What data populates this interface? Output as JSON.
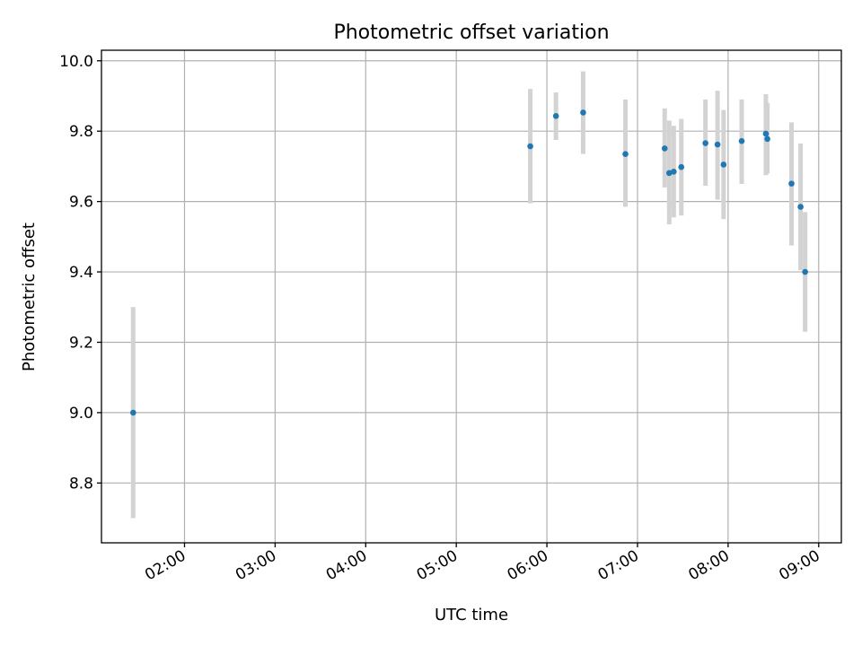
{
  "chart_data": {
    "type": "scatter",
    "title": "Photometric offset variation",
    "xlabel": "UTC time",
    "ylabel": "Photometric offset",
    "xlim": [
      "01:05",
      "09:15"
    ],
    "ylim": [
      8.63,
      10.03
    ],
    "x_ticks": [
      "02:00",
      "03:00",
      "04:00",
      "05:00",
      "06:00",
      "07:00",
      "08:00",
      "09:00"
    ],
    "y_ticks": [
      "8.8",
      "9.0",
      "9.2",
      "9.4",
      "9.6",
      "9.8",
      "10.0"
    ],
    "grid": true,
    "colors": {
      "point": "#1f77b4",
      "errorbar": "#d3d3d3"
    },
    "series": [
      {
        "points": [
          {
            "x": "01:26",
            "y": 9.0,
            "ylo": 8.7,
            "yhi": 9.3
          },
          {
            "x": "05:49",
            "y": 9.757,
            "ylo": 9.595,
            "yhi": 9.92
          },
          {
            "x": "06:06",
            "y": 9.843,
            "ylo": 9.775,
            "yhi": 9.91
          },
          {
            "x": "06:24",
            "y": 9.853,
            "ylo": 9.735,
            "yhi": 9.97
          },
          {
            "x": "06:52",
            "y": 9.735,
            "ylo": 9.585,
            "yhi": 9.89
          },
          {
            "x": "07:18",
            "y": 9.751,
            "ylo": 9.64,
            "yhi": 9.865
          },
          {
            "x": "07:21",
            "y": 9.681,
            "ylo": 9.535,
            "yhi": 9.83
          },
          {
            "x": "07:24",
            "y": 9.685,
            "ylo": 9.555,
            "yhi": 9.815
          },
          {
            "x": "07:29",
            "y": 9.698,
            "ylo": 9.56,
            "yhi": 9.835
          },
          {
            "x": "07:45",
            "y": 9.766,
            "ylo": 9.645,
            "yhi": 9.89
          },
          {
            "x": "07:53",
            "y": 9.762,
            "ylo": 9.605,
            "yhi": 9.915
          },
          {
            "x": "07:57",
            "y": 9.705,
            "ylo": 9.55,
            "yhi": 9.86
          },
          {
            "x": "08:09",
            "y": 9.772,
            "ylo": 9.65,
            "yhi": 9.89
          },
          {
            "x": "08:25",
            "y": 9.793,
            "ylo": 9.675,
            "yhi": 9.905
          },
          {
            "x": "08:26",
            "y": 9.778,
            "ylo": 9.68,
            "yhi": 9.88
          },
          {
            "x": "08:42",
            "y": 9.651,
            "ylo": 9.475,
            "yhi": 9.825
          },
          {
            "x": "08:48",
            "y": 9.585,
            "ylo": 9.405,
            "yhi": 9.765
          },
          {
            "x": "08:51",
            "y": 9.4,
            "ylo": 9.23,
            "yhi": 9.57
          }
        ]
      }
    ]
  }
}
